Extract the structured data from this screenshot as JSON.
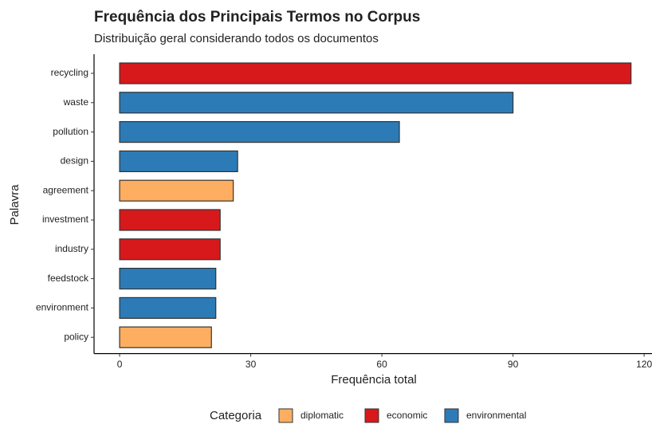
{
  "chart_data": {
    "type": "barh",
    "title": "Frequência dos Principais Termos no Corpus",
    "subtitle": "Distribuição geral considerando todos os documentos",
    "xlabel": "Frequência total",
    "ylabel": "Palavra",
    "legend_title": "Categoria",
    "categories": [
      "recycling",
      "waste",
      "pollution",
      "design",
      "agreement",
      "investment",
      "industry",
      "feedstock",
      "environment",
      "policy"
    ],
    "series": [
      {
        "name": "diplomatic",
        "color": "#fdae61",
        "values": [
          null,
          null,
          null,
          null,
          26,
          null,
          null,
          null,
          null,
          21
        ]
      },
      {
        "name": "economic",
        "color": "#d7191c",
        "values": [
          117,
          null,
          null,
          null,
          null,
          23,
          23,
          null,
          null,
          null
        ]
      },
      {
        "name": "environmental",
        "color": "#2c7bb6",
        "values": [
          null,
          90,
          64,
          27,
          null,
          null,
          null,
          22,
          22,
          null
        ]
      }
    ],
    "xlim": [
      -5.85,
      121.8
    ],
    "xticks": [
      0,
      30,
      60,
      90,
      120
    ],
    "legend": "bottom"
  }
}
